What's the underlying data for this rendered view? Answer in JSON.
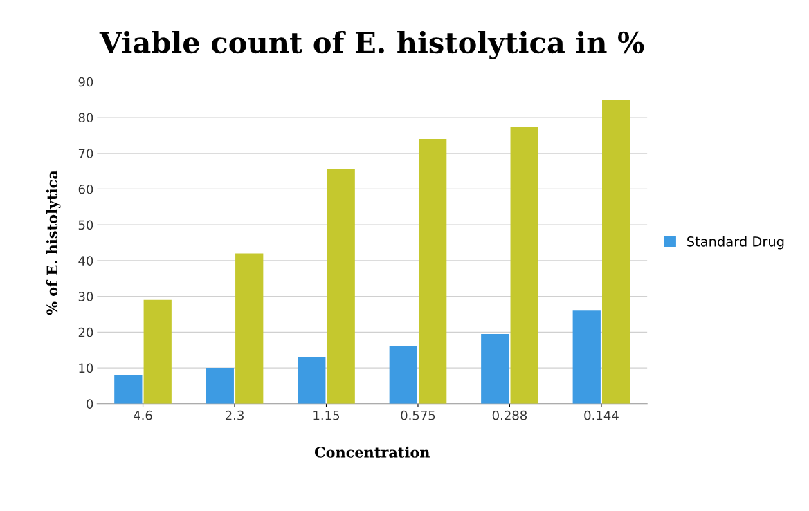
{
  "chart_data": {
    "type": "bar",
    "title": "Viable count of E. histolytica in %",
    "xlabel": "Concentration",
    "ylabel": "% of E. histolytica",
    "categories": [
      "4.6",
      "2.3",
      "1.15",
      "0.575",
      "0.288",
      "0.144"
    ],
    "series": [
      {
        "name": "Standard Drug",
        "color": "#3d9be3",
        "values": [
          8,
          10,
          13,
          16,
          19.5,
          26
        ]
      },
      {
        "color": "#c5c82e",
        "values": [
          29,
          42,
          65.5,
          74,
          77.5,
          85
        ]
      }
    ],
    "ylim": [
      0,
      90
    ],
    "yticks": [
      0,
      10,
      20,
      30,
      40,
      50,
      60,
      70,
      80,
      90
    ],
    "grid": "y",
    "legend": "right"
  }
}
